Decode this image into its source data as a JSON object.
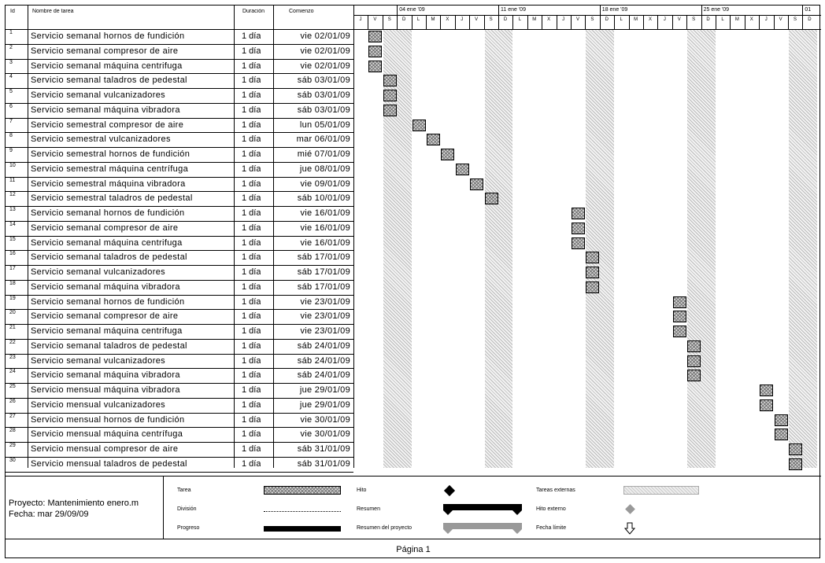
{
  "columns": {
    "id": "Id",
    "name": "Nombre de tarea",
    "duration": "Duración",
    "start": "Comienzo"
  },
  "timescale": {
    "weeks": [
      "04 ene '09",
      "11 ene '09",
      "18 ene '09",
      "25 ene '09",
      "01"
    ],
    "days": [
      "J",
      "V",
      "S",
      "D",
      "L",
      "M",
      "X",
      "J",
      "V",
      "S",
      "D",
      "L",
      "M",
      "X",
      "J",
      "V",
      "S",
      "D",
      "L",
      "M",
      "X",
      "J",
      "V",
      "S",
      "D",
      "L",
      "M",
      "X",
      "J",
      "V",
      "S",
      "D"
    ]
  },
  "tasks": [
    {
      "id": "1",
      "name": "Servicio semanal hornos de fundición",
      "duration": "1 día",
      "start": "vie 02/01/09",
      "day": 1
    },
    {
      "id": "2",
      "name": "Servicio semanal compresor de aire",
      "duration": "1 día",
      "start": "vie 02/01/09",
      "day": 1
    },
    {
      "id": "3",
      "name": "Servicio semanal máquina centrifuga",
      "duration": "1 día",
      "start": "vie 02/01/09",
      "day": 1
    },
    {
      "id": "4",
      "name": "Servicio semanal taladros de pedestal",
      "duration": "1 día",
      "start": "sáb 03/01/09",
      "day": 2
    },
    {
      "id": "5",
      "name": "Servicio semanal vulcanizadores",
      "duration": "1 día",
      "start": "sáb 03/01/09",
      "day": 2
    },
    {
      "id": "6",
      "name": "Servicio semanal máquina vibradora",
      "duration": "1 día",
      "start": "sáb 03/01/09",
      "day": 2
    },
    {
      "id": "7",
      "name": "Servicio semestral compresor de aire",
      "duration": "1 día",
      "start": "lun 05/01/09",
      "day": 4
    },
    {
      "id": "8",
      "name": "Servicio semestral vulcanizadores",
      "duration": "1 día",
      "start": "mar 06/01/09",
      "day": 5
    },
    {
      "id": "9",
      "name": "Servicio semestral hornos de fundición",
      "duration": "1 día",
      "start": "mié 07/01/09",
      "day": 6
    },
    {
      "id": "10",
      "name": "Servicio semestral máquina centrífuga",
      "duration": "1 día",
      "start": "jue 08/01/09",
      "day": 7
    },
    {
      "id": "11",
      "name": "Servicio semestral máquina vibradora",
      "duration": "1 día",
      "start": "vie 09/01/09",
      "day": 8
    },
    {
      "id": "12",
      "name": "Servicio semestral taladros de pedestal",
      "duration": "1 día",
      "start": "sáb 10/01/09",
      "day": 9
    },
    {
      "id": "13",
      "name": "Servicio semanal hornos de fundición",
      "duration": "1 día",
      "start": "vie 16/01/09",
      "day": 15
    },
    {
      "id": "14",
      "name": "Servicio semanal compresor de aire",
      "duration": "1 día",
      "start": "vie 16/01/09",
      "day": 15
    },
    {
      "id": "15",
      "name": "Servicio semanal máquina centrifuga",
      "duration": "1 día",
      "start": "vie 16/01/09",
      "day": 15
    },
    {
      "id": "16",
      "name": "Servicio semanal taladros de pedestal",
      "duration": "1 día",
      "start": "sáb 17/01/09",
      "day": 16
    },
    {
      "id": "17",
      "name": "Servicio semanal vulcanizadores",
      "duration": "1 día",
      "start": "sáb 17/01/09",
      "day": 16
    },
    {
      "id": "18",
      "name": "Servicio semanal máquina vibradora",
      "duration": "1 día",
      "start": "sáb 17/01/09",
      "day": 16
    },
    {
      "id": "19",
      "name": "Servicio semanal hornos de fundición",
      "duration": "1 día",
      "start": "vie 23/01/09",
      "day": 22
    },
    {
      "id": "20",
      "name": "Servicio semanal compresor de aire",
      "duration": "1 día",
      "start": "vie 23/01/09",
      "day": 22
    },
    {
      "id": "21",
      "name": "Servicio semanal máquina centrifuga",
      "duration": "1 día",
      "start": "vie 23/01/09",
      "day": 22
    },
    {
      "id": "22",
      "name": "Servicio semanal taladros de pedestal",
      "duration": "1 día",
      "start": "sáb 24/01/09",
      "day": 23
    },
    {
      "id": "23",
      "name": "Servicio semanal vulcanizadores",
      "duration": "1 día",
      "start": "sáb 24/01/09",
      "day": 23
    },
    {
      "id": "24",
      "name": "Servicio semanal máquina vibradora",
      "duration": "1 día",
      "start": "sáb 24/01/09",
      "day": 23
    },
    {
      "id": "25",
      "name": "Servicio mensual máquina vibradora",
      "duration": "1 día",
      "start": "jue 29/01/09",
      "day": 28
    },
    {
      "id": "26",
      "name": "Servicio mensual vulcanizadores",
      "duration": "1 día",
      "start": "jue 29/01/09",
      "day": 28
    },
    {
      "id": "27",
      "name": "Servicio mensual hornos de fundición",
      "duration": "1 día",
      "start": "vie 30/01/09",
      "day": 29
    },
    {
      "id": "28",
      "name": "Servicio mensual máquina centrífuga",
      "duration": "1 día",
      "start": "vie 30/01/09",
      "day": 29
    },
    {
      "id": "29",
      "name": "Servicio mensual compresor de aire",
      "duration": "1 día",
      "start": "sáb 31/01/09",
      "day": 30
    },
    {
      "id": "30",
      "name": "Servicio mensual taladros de pedestal",
      "duration": "1 día",
      "start": "sáb 31/01/09",
      "day": 30
    }
  ],
  "legend": {
    "project": "Proyecto: Mantenimiento enero.m",
    "date": "Fecha: mar 29/09/09",
    "task": "Tarea",
    "split": "División",
    "progress": "Progreso",
    "milestone": "Hito",
    "summary": "Resumen",
    "project_summary": "Resumen del proyecto",
    "external_tasks": "Tareas externas",
    "external_milestone": "Hito externo",
    "deadline": "Fecha límite"
  },
  "footer": "Página 1"
}
